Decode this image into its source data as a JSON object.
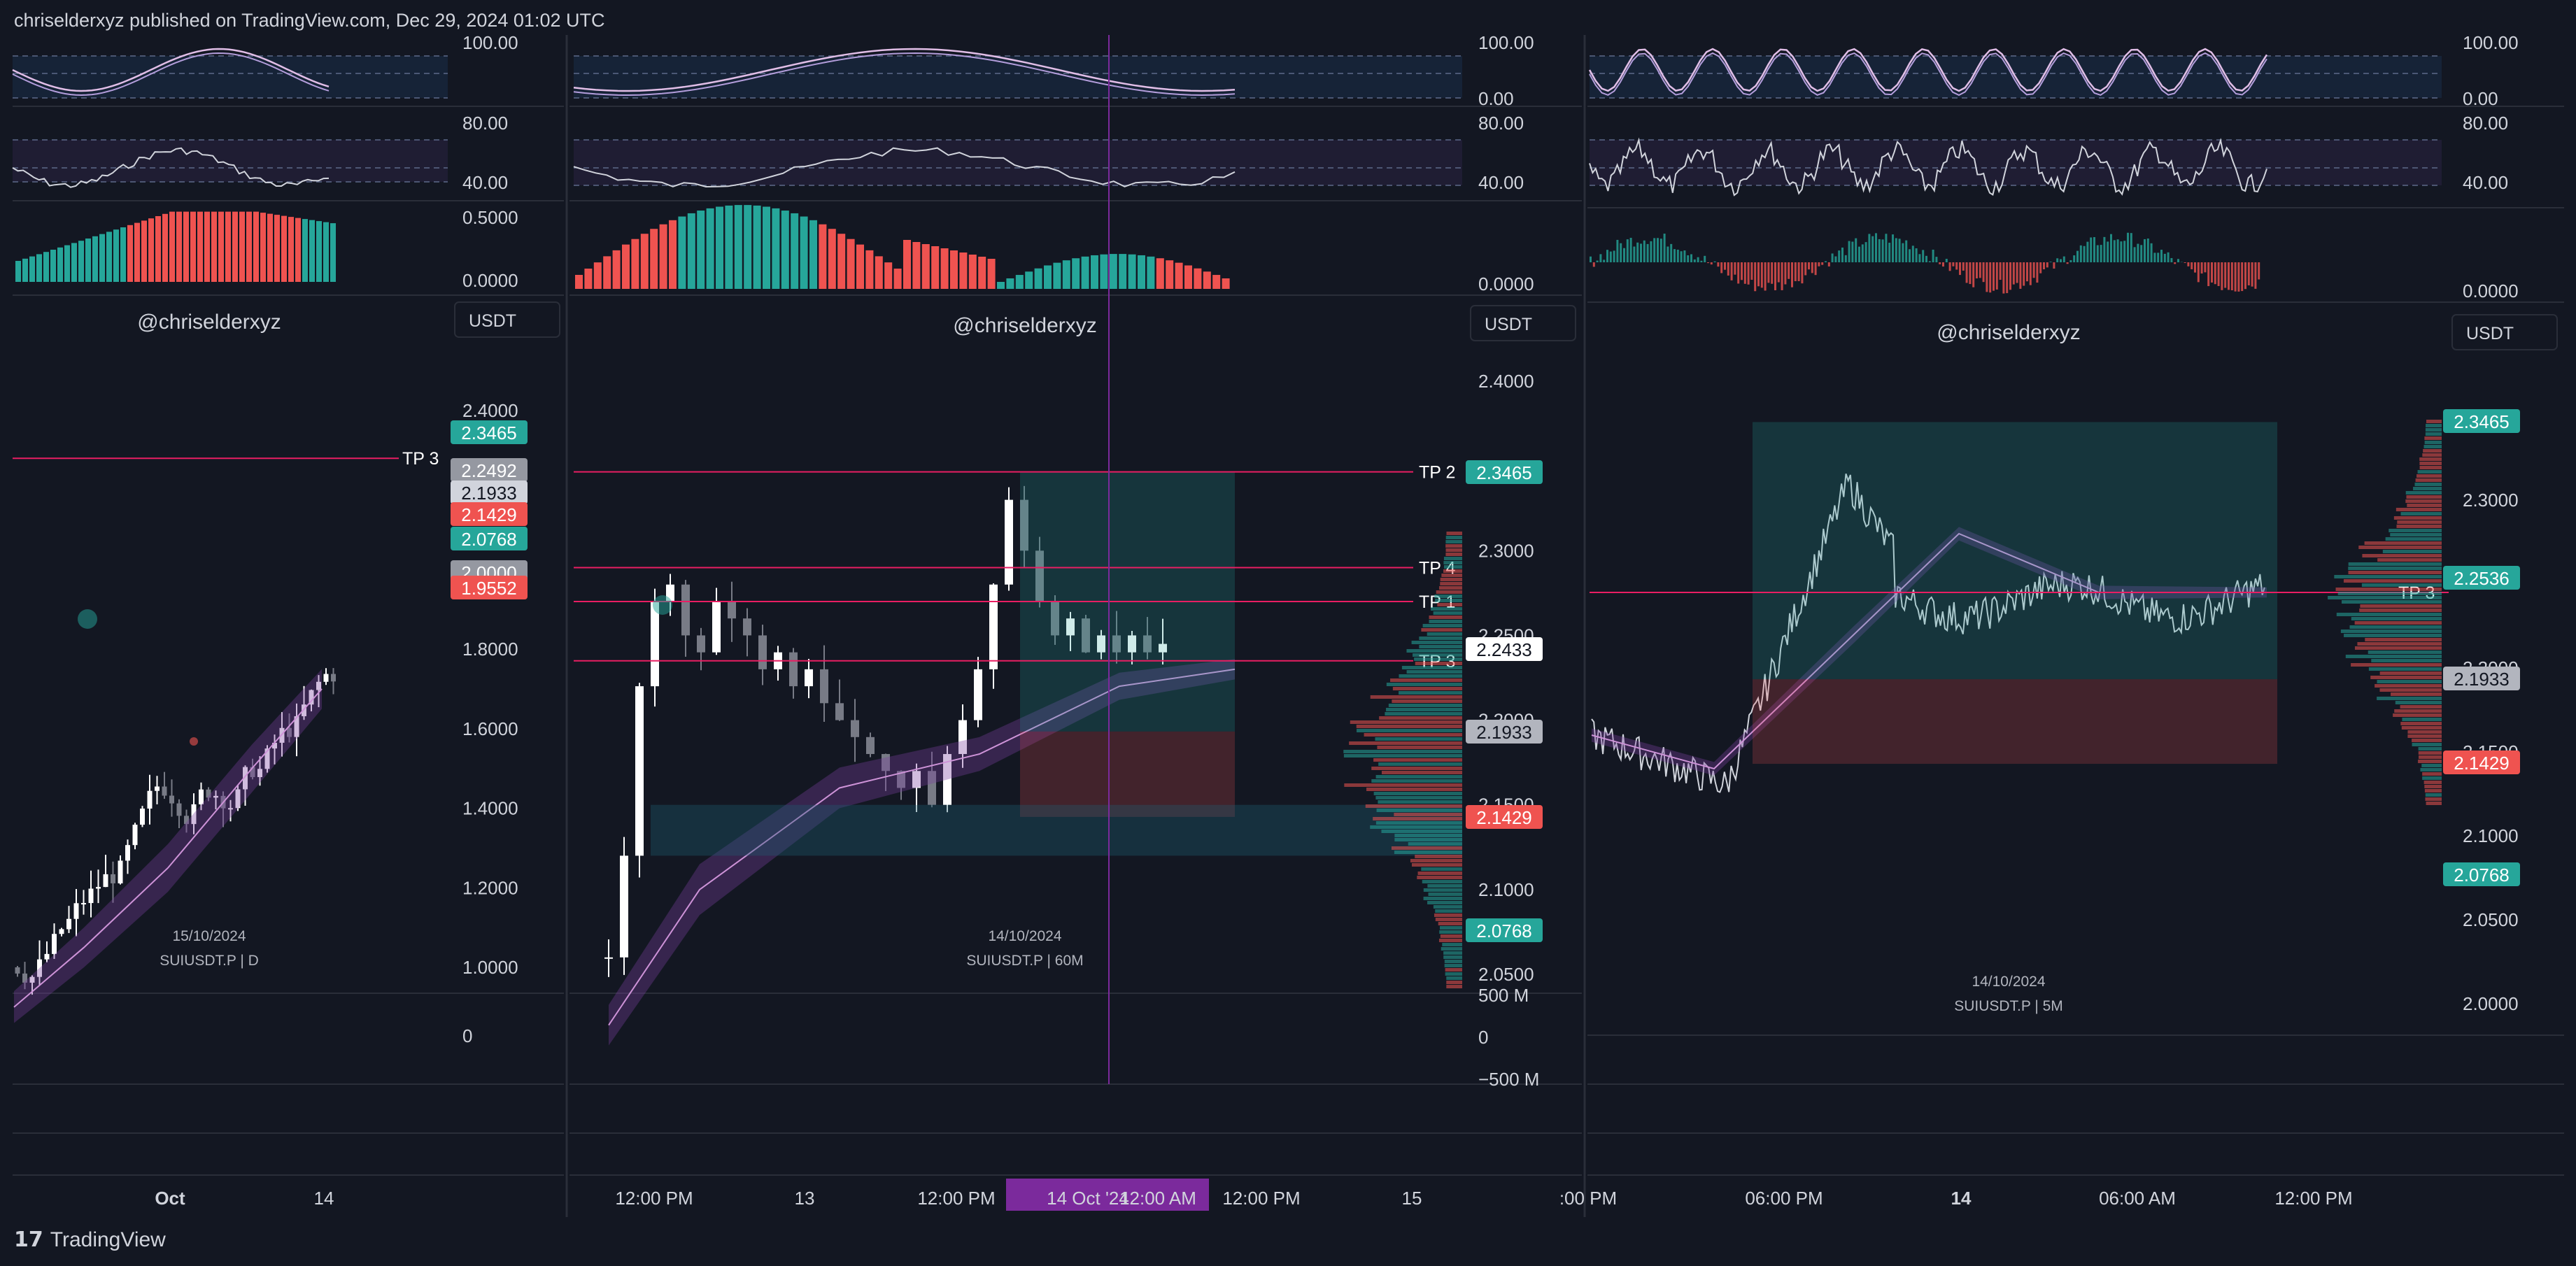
{
  "header": {
    "publisher_line": "chriselderxyz published on TradingView.com, Dec 29, 2024 01:02 UTC"
  },
  "footer": {
    "brand": "TradingView"
  },
  "colors": {
    "background": "#131722",
    "bull": "#26a69a",
    "bear": "#ef5350",
    "white_candle": "#ffffff",
    "grey_candle": "#787b86",
    "tp_line": "#e91e63",
    "ma_lilac": "#ce93d8",
    "ma_purple": "#7b3fa0",
    "date_badge": "#7b2a9c"
  },
  "panels": [
    {
      "watermark": "@chriselderxyz",
      "currency": "USDT",
      "symbol": "SUIUSDT.P | D",
      "date_label": "15/10/2024",
      "osc1_ticks": [
        "100.00"
      ],
      "osc2_ticks": [
        "80.00",
        "40.00"
      ],
      "hist_ticks": [
        "0.5000",
        "0.0000"
      ],
      "price_ticks": [
        "2.4000",
        "1.8000",
        "1.6000",
        "1.4000",
        "1.2000",
        "1.0000"
      ],
      "volume_tick": "0",
      "price_badges": [
        {
          "text": "2.3465",
          "color": "#26a69a"
        },
        {
          "text": "2.2492",
          "color": "#9598a1"
        },
        {
          "text": "2.1933",
          "color": "#d1d4dc"
        },
        {
          "text": "2.1429",
          "color": "#ef5350"
        },
        {
          "text": "2.0768",
          "color": "#26a69a"
        },
        {
          "text": "2.0000",
          "color": "#9598a1"
        },
        {
          "text": "1.9552",
          "color": "#ef5350"
        }
      ],
      "tp_labels": [
        "TP 3"
      ],
      "time_axis": [
        "Oct",
        "14"
      ]
    },
    {
      "watermark": "@chriselderxyz",
      "currency": "USDT",
      "symbol": "SUIUSDT.P | 60M",
      "date_label": "14/10/2024",
      "osc1_ticks": [
        "100.00",
        "0.00"
      ],
      "osc2_ticks": [
        "80.00",
        "40.00"
      ],
      "hist_ticks": [
        "0.0000"
      ],
      "price_ticks": [
        "2.4000",
        "2.3000",
        "2.2500",
        "2.2000",
        "2.1500",
        "2.1000",
        "2.0500"
      ],
      "volume_ticks": [
        "500 M",
        "0",
        "−500 M"
      ],
      "price_badges": [
        {
          "text": "2.3465",
          "color": "#26a69a"
        },
        {
          "text": "2.2433",
          "color": "#ffffff"
        },
        {
          "text": "2.1933",
          "color": "#b2b5be"
        },
        {
          "text": "2.1429",
          "color": "#ef5350"
        },
        {
          "text": "2.0768",
          "color": "#26a69a"
        }
      ],
      "tp_labels": [
        "TP 2",
        "TP 4",
        "TP 1",
        "TP 3"
      ],
      "time_axis": [
        "12:00 PM",
        "13",
        "12:00 PM",
        "14 Oct '24",
        "12:00 AM",
        "12:00 PM",
        "15"
      ]
    },
    {
      "watermark": "@chriselderxyz",
      "currency": "USDT",
      "symbol": "SUIUSDT.P | 5M",
      "date_label": "14/10/2024",
      "osc1_ticks": [
        "100.00",
        "0.00"
      ],
      "osc2_ticks": [
        "80.00",
        "40.00"
      ],
      "hist_ticks": [
        "0.0000"
      ],
      "price_ticks": [
        "2.3000",
        "2.2000",
        "2.1500",
        "2.1000",
        "2.0500",
        "2.0000"
      ],
      "price_badges": [
        {
          "text": "2.3465",
          "color": "#26a69a"
        },
        {
          "text": "2.2536",
          "color": "#26a69a"
        },
        {
          "text": "2.1933",
          "color": "#b2b5be"
        },
        {
          "text": "2.1429",
          "color": "#ef5350"
        },
        {
          "text": "2.0768",
          "color": "#26a69a"
        }
      ],
      "tp_labels": [
        "TP 3"
      ],
      "time_axis": [
        ":00 PM",
        "06:00 PM",
        "14",
        "06:00 AM",
        "12:00 PM"
      ]
    }
  ]
}
